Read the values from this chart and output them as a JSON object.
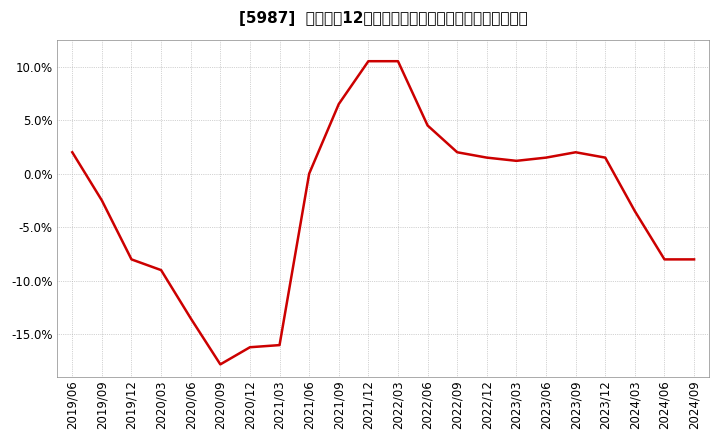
{
  "title": "[5987]  売上高の12か月移動合計の対前年同期増減率の推移",
  "line_color": "#cc0000",
  "bg_color": "#ffffff",
  "plot_bg_color": "#ffffff",
  "grid_color": "#aaaaaa",
  "dates": [
    "2019/06",
    "2019/09",
    "2019/12",
    "2020/03",
    "2020/06",
    "2020/09",
    "2020/12",
    "2021/03",
    "2021/06",
    "2021/09",
    "2021/12",
    "2022/03",
    "2022/06",
    "2022/09",
    "2022/12",
    "2023/03",
    "2023/06",
    "2023/09",
    "2023/12",
    "2024/03",
    "2024/06",
    "2024/09"
  ],
  "values": [
    2.0,
    -2.5,
    -8.0,
    -9.0,
    -13.5,
    -17.8,
    -16.2,
    -16.0,
    0.0,
    6.5,
    10.5,
    10.5,
    4.5,
    2.0,
    1.5,
    1.2,
    1.5,
    2.0,
    1.5,
    -3.5,
    -8.0,
    -8.0
  ],
  "ylim": [
    -19.0,
    12.5
  ],
  "yticks": [
    10.0,
    5.0,
    0.0,
    -5.0,
    -10.0,
    -15.0
  ],
  "title_fontsize": 11,
  "tick_fontsize": 8.5,
  "linewidth": 1.8
}
